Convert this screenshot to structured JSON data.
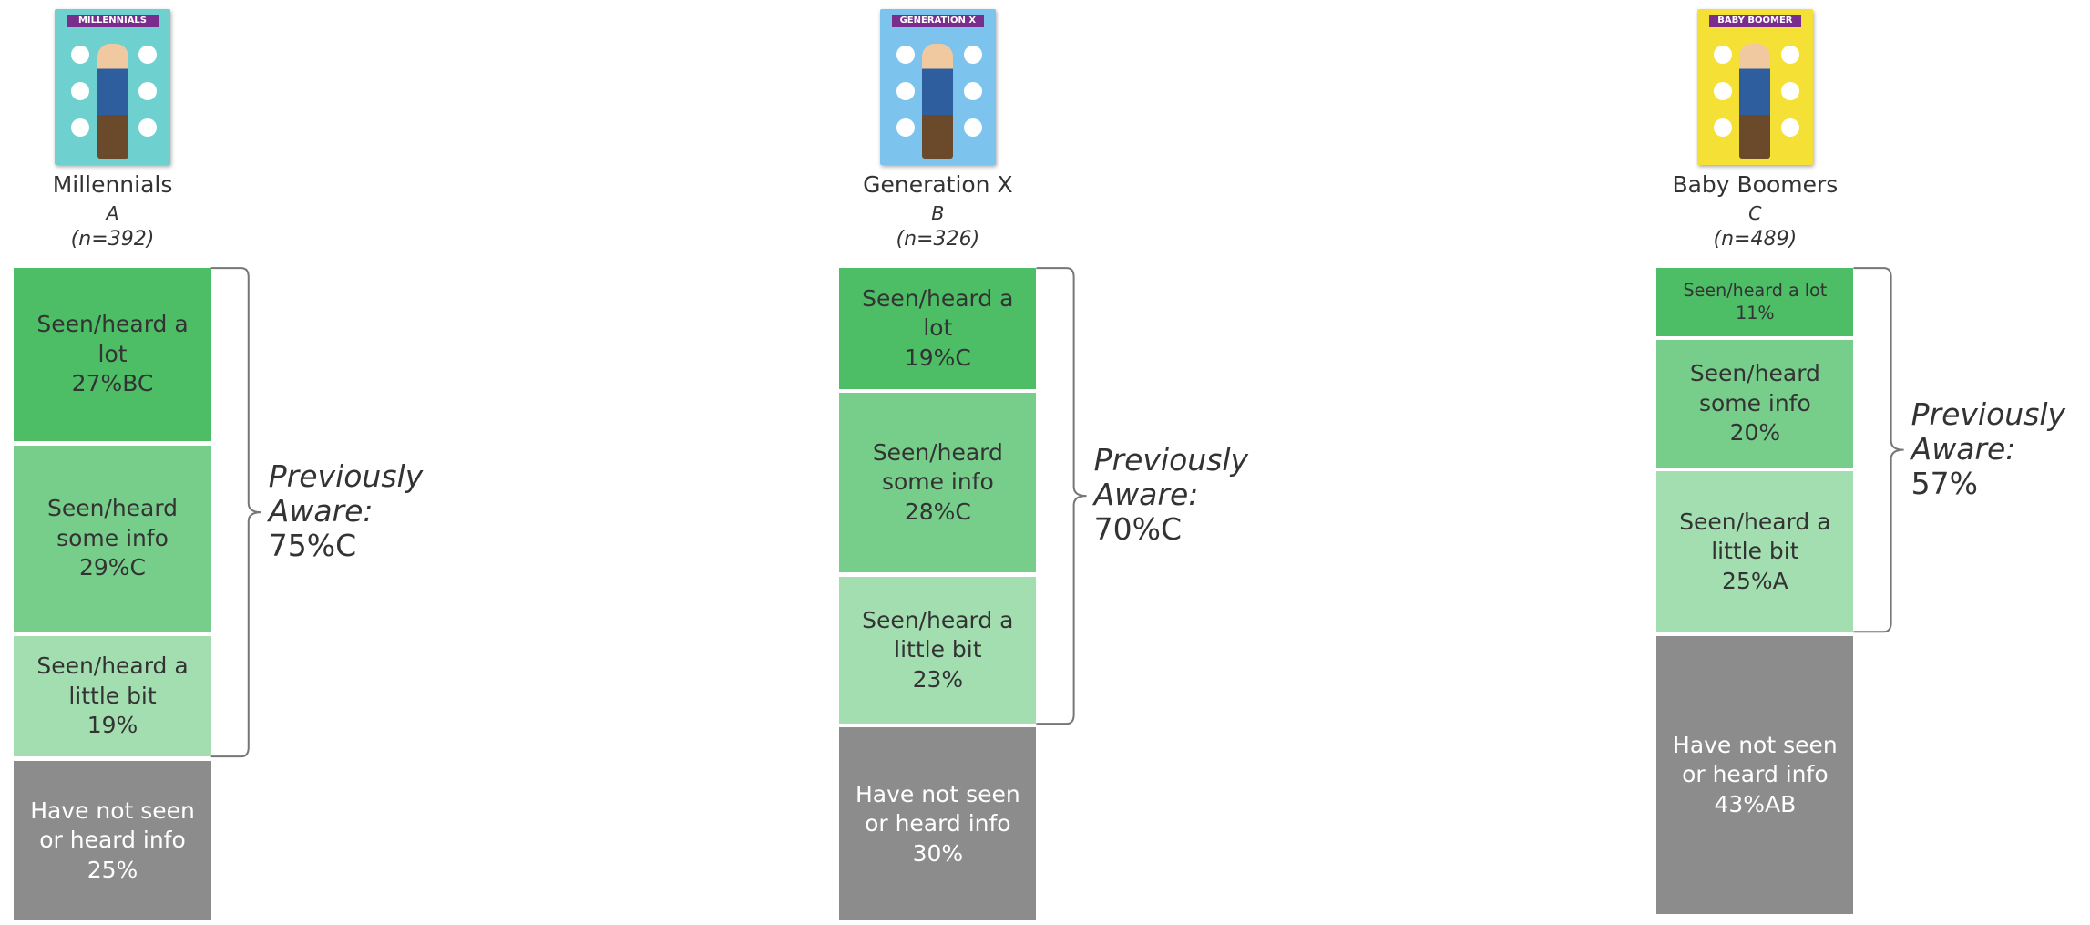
{
  "chart_data": {
    "type": "stacked-column",
    "groups": [
      {
        "name": "Millennials",
        "poster": "MILLENNIALS",
        "poster_color": "#6fd0d0",
        "letter": "A",
        "n": "(n=392)",
        "aware_label": "Previously Aware:",
        "aware_text": "75%C",
        "segments": [
          {
            "label": "Seen/heard a lot",
            "value": 27,
            "value_label": "27%BC",
            "color": "#4dbd66"
          },
          {
            "label": "Seen/heard some info",
            "value": 29,
            "value_label": "29%C",
            "color": "#77cd8a"
          },
          {
            "label": "Seen/heard a little bit",
            "value": 19,
            "value_label": "19%",
            "color": "#a3deb0"
          },
          {
            "label": "Have not seen or heard info",
            "value": 25,
            "value_label": "25%",
            "color": "#8c8c8c"
          }
        ]
      },
      {
        "name": "Generation X",
        "poster": "GENERATION X",
        "poster_color": "#7cc4ee",
        "letter": "B",
        "n": "(n=326)",
        "aware_label": "Previously Aware:",
        "aware_text": "70%C",
        "segments": [
          {
            "label": "Seen/heard a lot",
            "value": 19,
            "value_label": "19%C",
            "color": "#4dbd66"
          },
          {
            "label": "Seen/heard some info",
            "value": 28,
            "value_label": "28%C",
            "color": "#77cd8a"
          },
          {
            "label": "Seen/heard a little bit",
            "value": 23,
            "value_label": "23%",
            "color": "#a3deb0"
          },
          {
            "label": "Have not seen or heard info",
            "value": 30,
            "value_label": "30%",
            "color": "#8c8c8c"
          }
        ]
      },
      {
        "name": "Baby Boomers",
        "poster": "BABY BOOMER",
        "poster_color": "#f5e035",
        "letter": "C",
        "n": "(n=489)",
        "aware_label": "Previously Aware:",
        "aware_text": "57%",
        "segments": [
          {
            "label": "Seen/heard a lot",
            "value": 11,
            "value_label": "11%",
            "color": "#4dbd66"
          },
          {
            "label": "Seen/heard some info",
            "value": 20,
            "value_label": "20%",
            "color": "#77cd8a"
          },
          {
            "label": "Seen/heard a little bit",
            "value": 25,
            "value_label": "25%A",
            "color": "#a3deb0"
          },
          {
            "label": "Have not seen or heard info",
            "value": 43,
            "value_label": "43%AB",
            "color": "#8c8c8c"
          }
        ]
      }
    ]
  }
}
